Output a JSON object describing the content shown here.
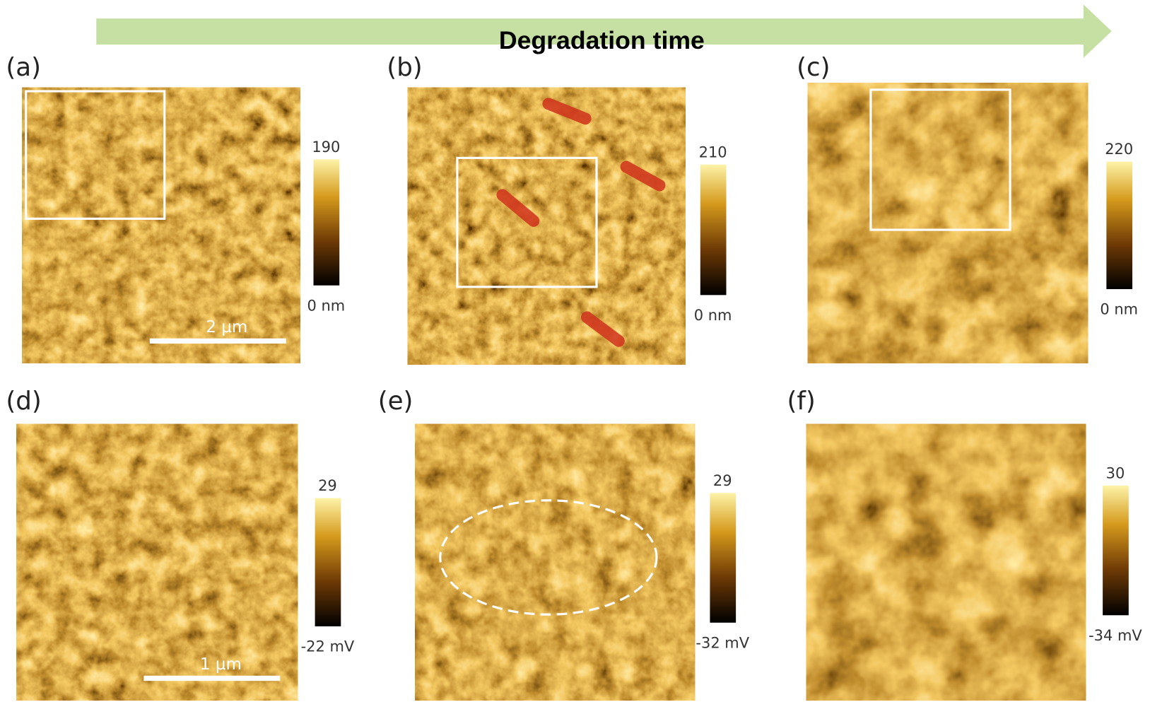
{
  "header": {
    "title": "Degradation time"
  },
  "panels": [
    {
      "label": "(a)",
      "colorbar_max": "190",
      "colorbar_min": "0 nm",
      "scale_bar": "2 µm"
    },
    {
      "label": "(b)",
      "colorbar_max": "210",
      "colorbar_min": "0 nm"
    },
    {
      "label": "(c)",
      "colorbar_max": "220",
      "colorbar_min": "0 nm"
    },
    {
      "label": "(d)",
      "colorbar_max": "29",
      "colorbar_min": "-22 mV",
      "scale_bar": "1 µm"
    },
    {
      "label": "(e)",
      "colorbar_max": "29",
      "colorbar_min": "-32 mV"
    },
    {
      "label": "(f)",
      "colorbar_max": "30",
      "colorbar_min": "-34 mV"
    }
  ]
}
